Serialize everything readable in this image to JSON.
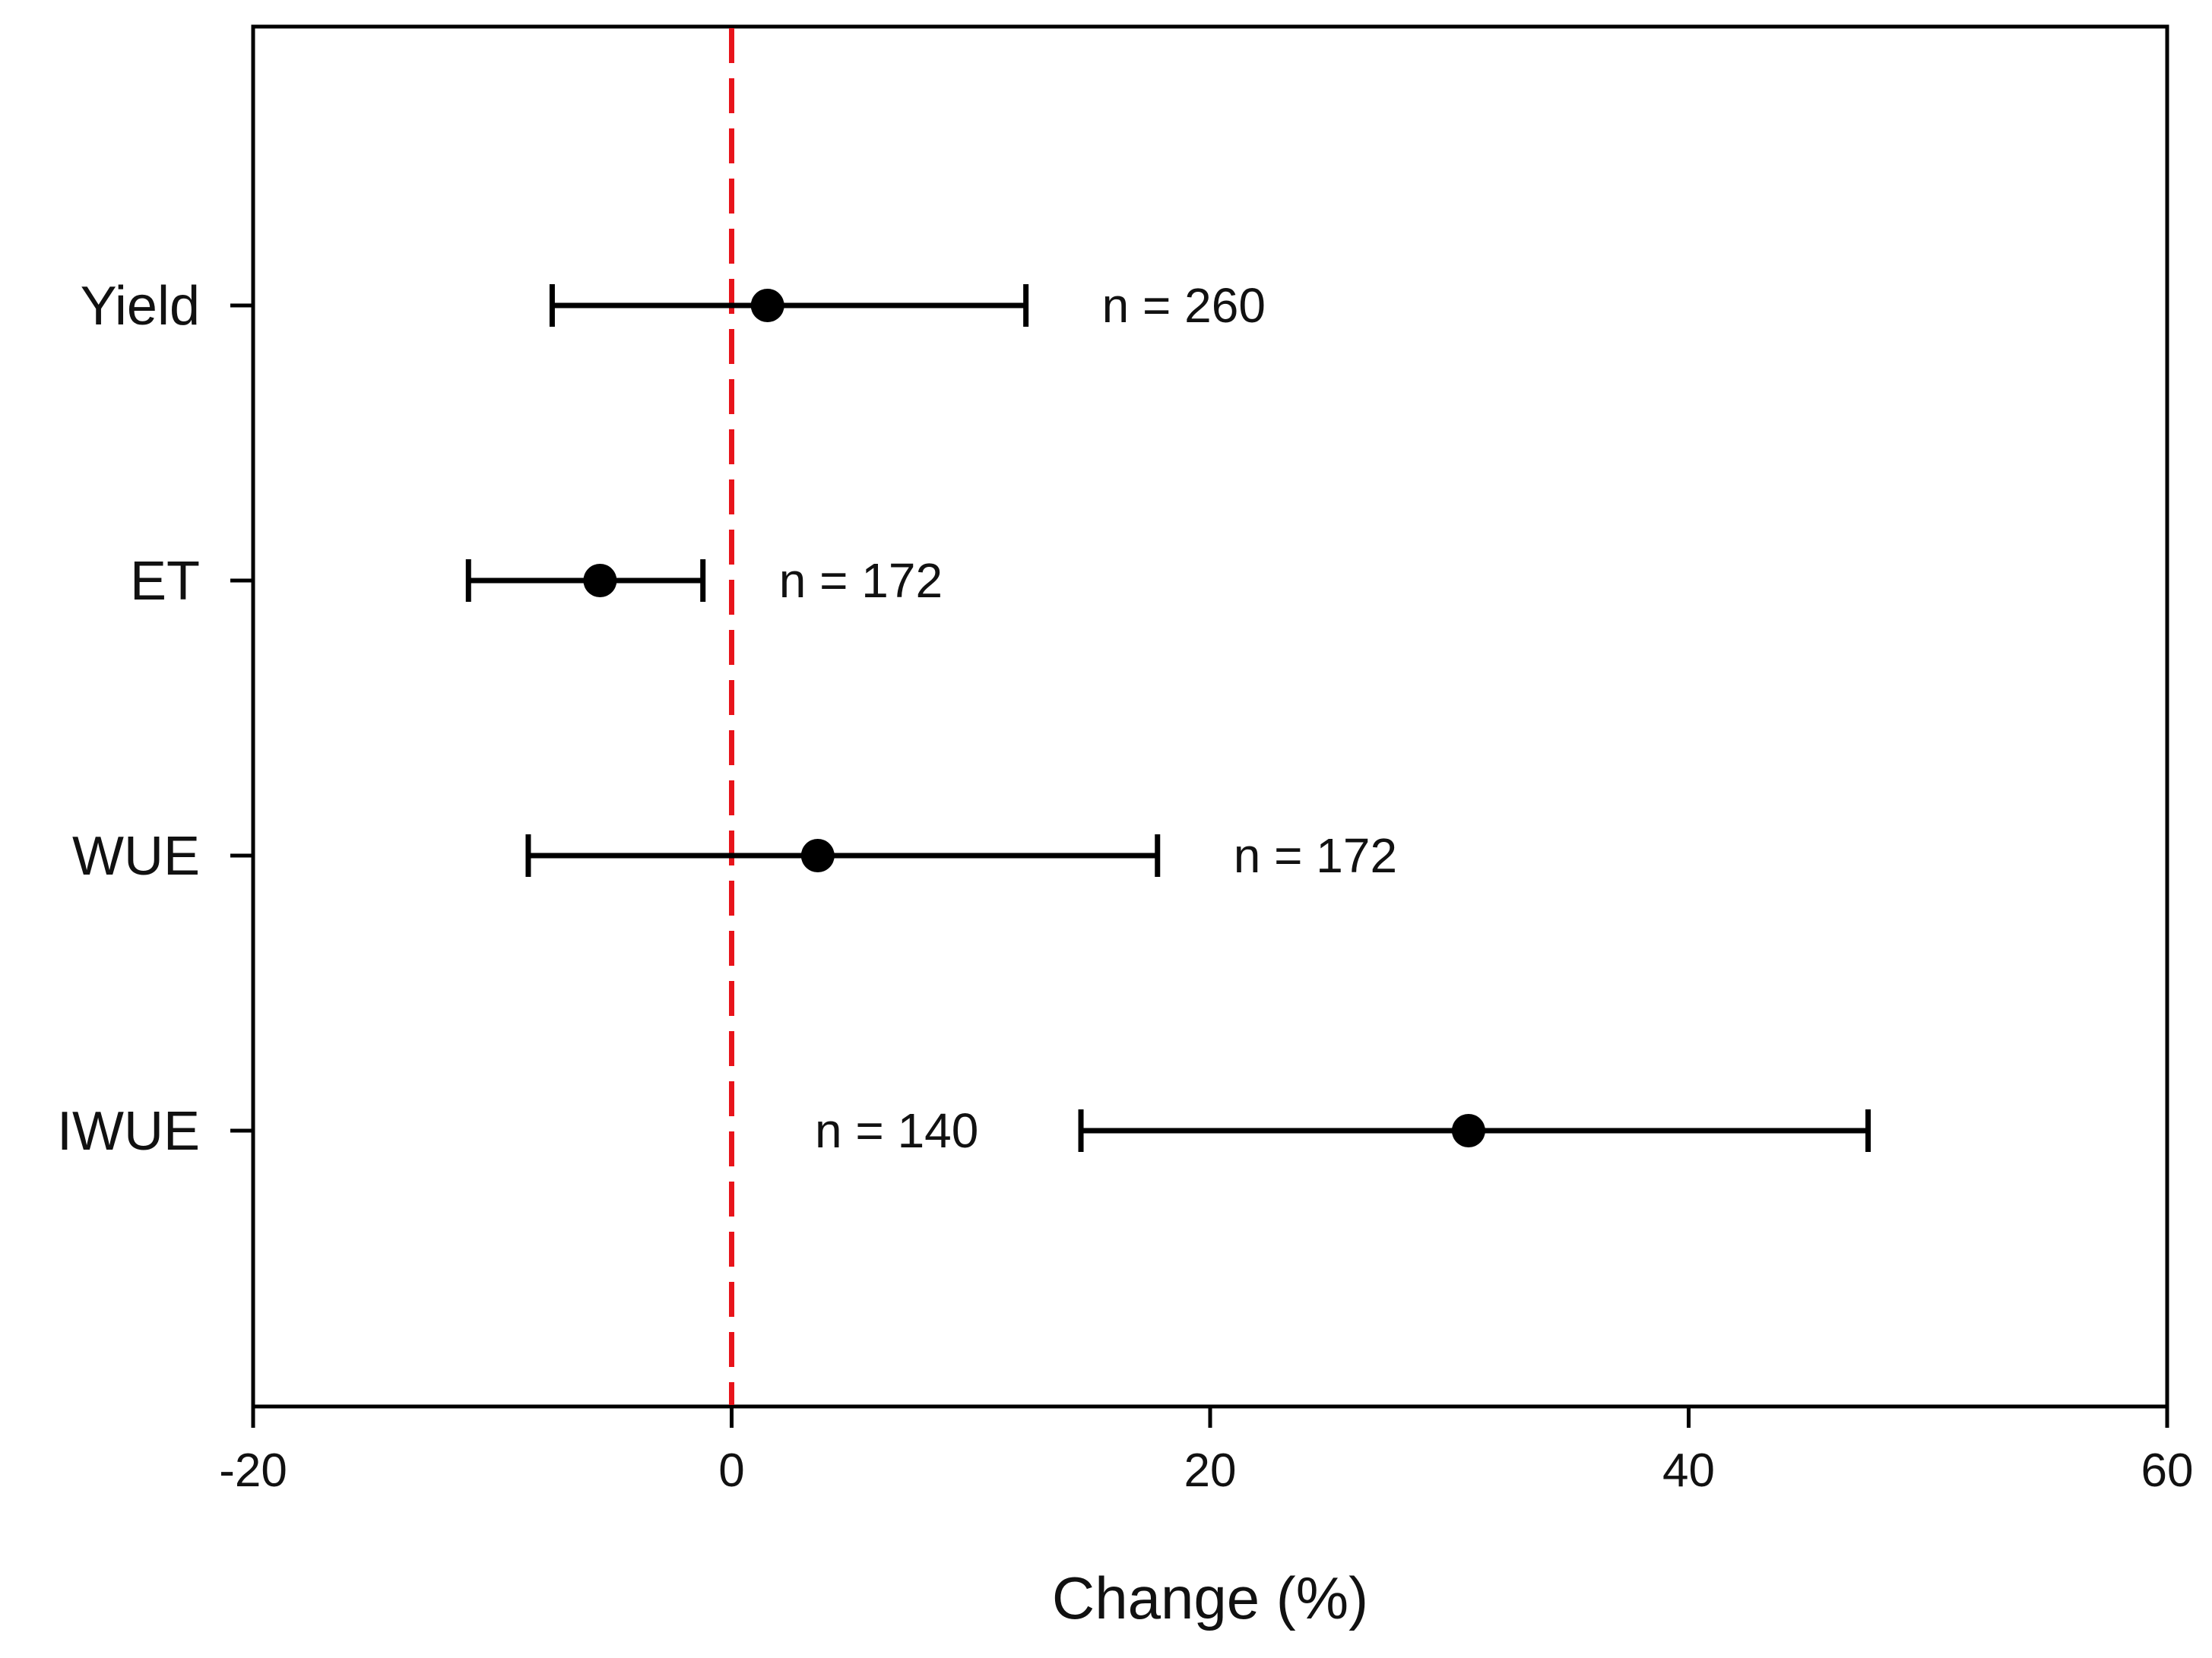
{
  "chart_data": {
    "type": "scatter",
    "orientation": "horizontal",
    "title": "",
    "xlabel": "Change (%)",
    "ylabel": "",
    "xlim": [
      -20,
      60
    ],
    "xticks": [
      "-20",
      "0",
      "20",
      "40",
      "60"
    ],
    "reference_line": {
      "x": 0,
      "color": "#e8141b",
      "style": "dashed"
    },
    "grid": false,
    "categories": [
      "Yield",
      "ET",
      "WUE",
      "IWUE"
    ],
    "points": [
      {
        "category": "Yield",
        "mean": 1.5,
        "lower": -7.5,
        "upper": 12.3,
        "n_label": "n = 260"
      },
      {
        "category": "ET",
        "mean": -5.5,
        "lower": -11,
        "upper": -1.2,
        "n_label": "n = 172"
      },
      {
        "category": "WUE",
        "mean": 3.6,
        "lower": -8.5,
        "upper": 17.8,
        "n_label": "n = 172"
      },
      {
        "category": "IWUE",
        "mean": 30.8,
        "lower": 14.6,
        "upper": 47.5,
        "n_label": "n = 140"
      }
    ]
  }
}
